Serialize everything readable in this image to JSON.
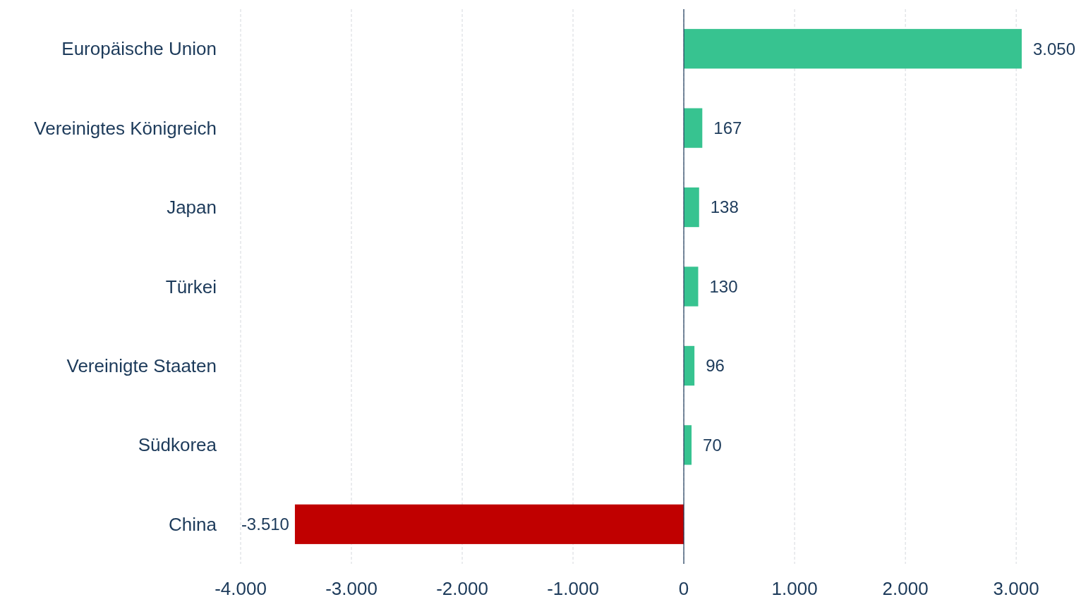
{
  "chart_data": {
    "type": "bar",
    "orientation": "horizontal",
    "categories": [
      "Europäische Union",
      "Vereinigtes Königreich",
      "Japan",
      "Türkei",
      "Vereinigte Staaten",
      "Südkorea",
      "China"
    ],
    "values": [
      3050,
      167,
      138,
      130,
      96,
      70,
      -3510
    ],
    "colors": [
      "#37c390",
      "#37c390",
      "#37c390",
      "#37c390",
      "#37c390",
      "#37c390",
      "#c00000"
    ],
    "value_labels": [
      "3.050",
      "167",
      "138",
      "130",
      "96",
      "70",
      "-3.510"
    ],
    "xlim": [
      -4000,
      3050
    ],
    "xticks": [
      {
        "value": -4000,
        "label": "-4.000"
      },
      {
        "value": -3000,
        "label": "-3.000"
      },
      {
        "value": -2000,
        "label": "-2.000"
      },
      {
        "value": -1000,
        "label": "-1.000"
      },
      0,
      {
        "value": 1000,
        "label": "1.000"
      },
      {
        "value": 2000,
        "label": "2.000"
      },
      {
        "value": 3000,
        "label": "3.000"
      }
    ],
    "grid": "x"
  }
}
